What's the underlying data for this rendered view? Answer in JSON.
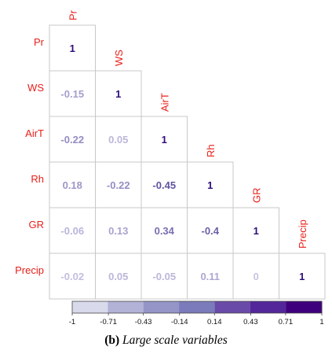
{
  "chart_data": {
    "type": "heatmap",
    "subtype": "lower-triangular correlation matrix",
    "variables": [
      "Pr",
      "WS",
      "AirT",
      "Rh",
      "GR",
      "Precip"
    ],
    "matrix": [
      [
        1,
        null,
        null,
        null,
        null,
        null
      ],
      [
        -0.15,
        1,
        null,
        null,
        null,
        null
      ],
      [
        -0.22,
        0.05,
        1,
        null,
        null,
        null
      ],
      [
        0.18,
        -0.22,
        -0.45,
        1,
        null,
        null
      ],
      [
        -0.06,
        0.13,
        0.34,
        -0.4,
        1,
        null
      ],
      [
        -0.02,
        0.05,
        -0.05,
        0.11,
        0,
        1
      ]
    ],
    "labels": [
      [
        "1"
      ],
      [
        "-0.15",
        "1"
      ],
      [
        "-0.22",
        "0.05",
        "1"
      ],
      [
        "0.18",
        "-0.22",
        "-0.45",
        "1"
      ],
      [
        "-0.06",
        "0.13",
        "0.34",
        "-0.4",
        "1"
      ],
      [
        "-0.02",
        "0.05",
        "-0.05",
        "0.11",
        "0",
        "1"
      ]
    ],
    "colorbar": {
      "range": [
        -1,
        1
      ],
      "ticks": [
        "-1",
        "-0.71",
        "-0.43",
        "-0.14",
        "0.14",
        "0.43",
        "0.71",
        "1"
      ],
      "colors": [
        "#d9d9ec",
        "#b2b2d7",
        "#9595c8",
        "#7b7bbb",
        "#6a4aa8",
        "#53279a",
        "#3f007d"
      ]
    },
    "label_color": "#e8201a"
  },
  "caption": {
    "tag": "(b)",
    "text": "Large scale variables"
  }
}
